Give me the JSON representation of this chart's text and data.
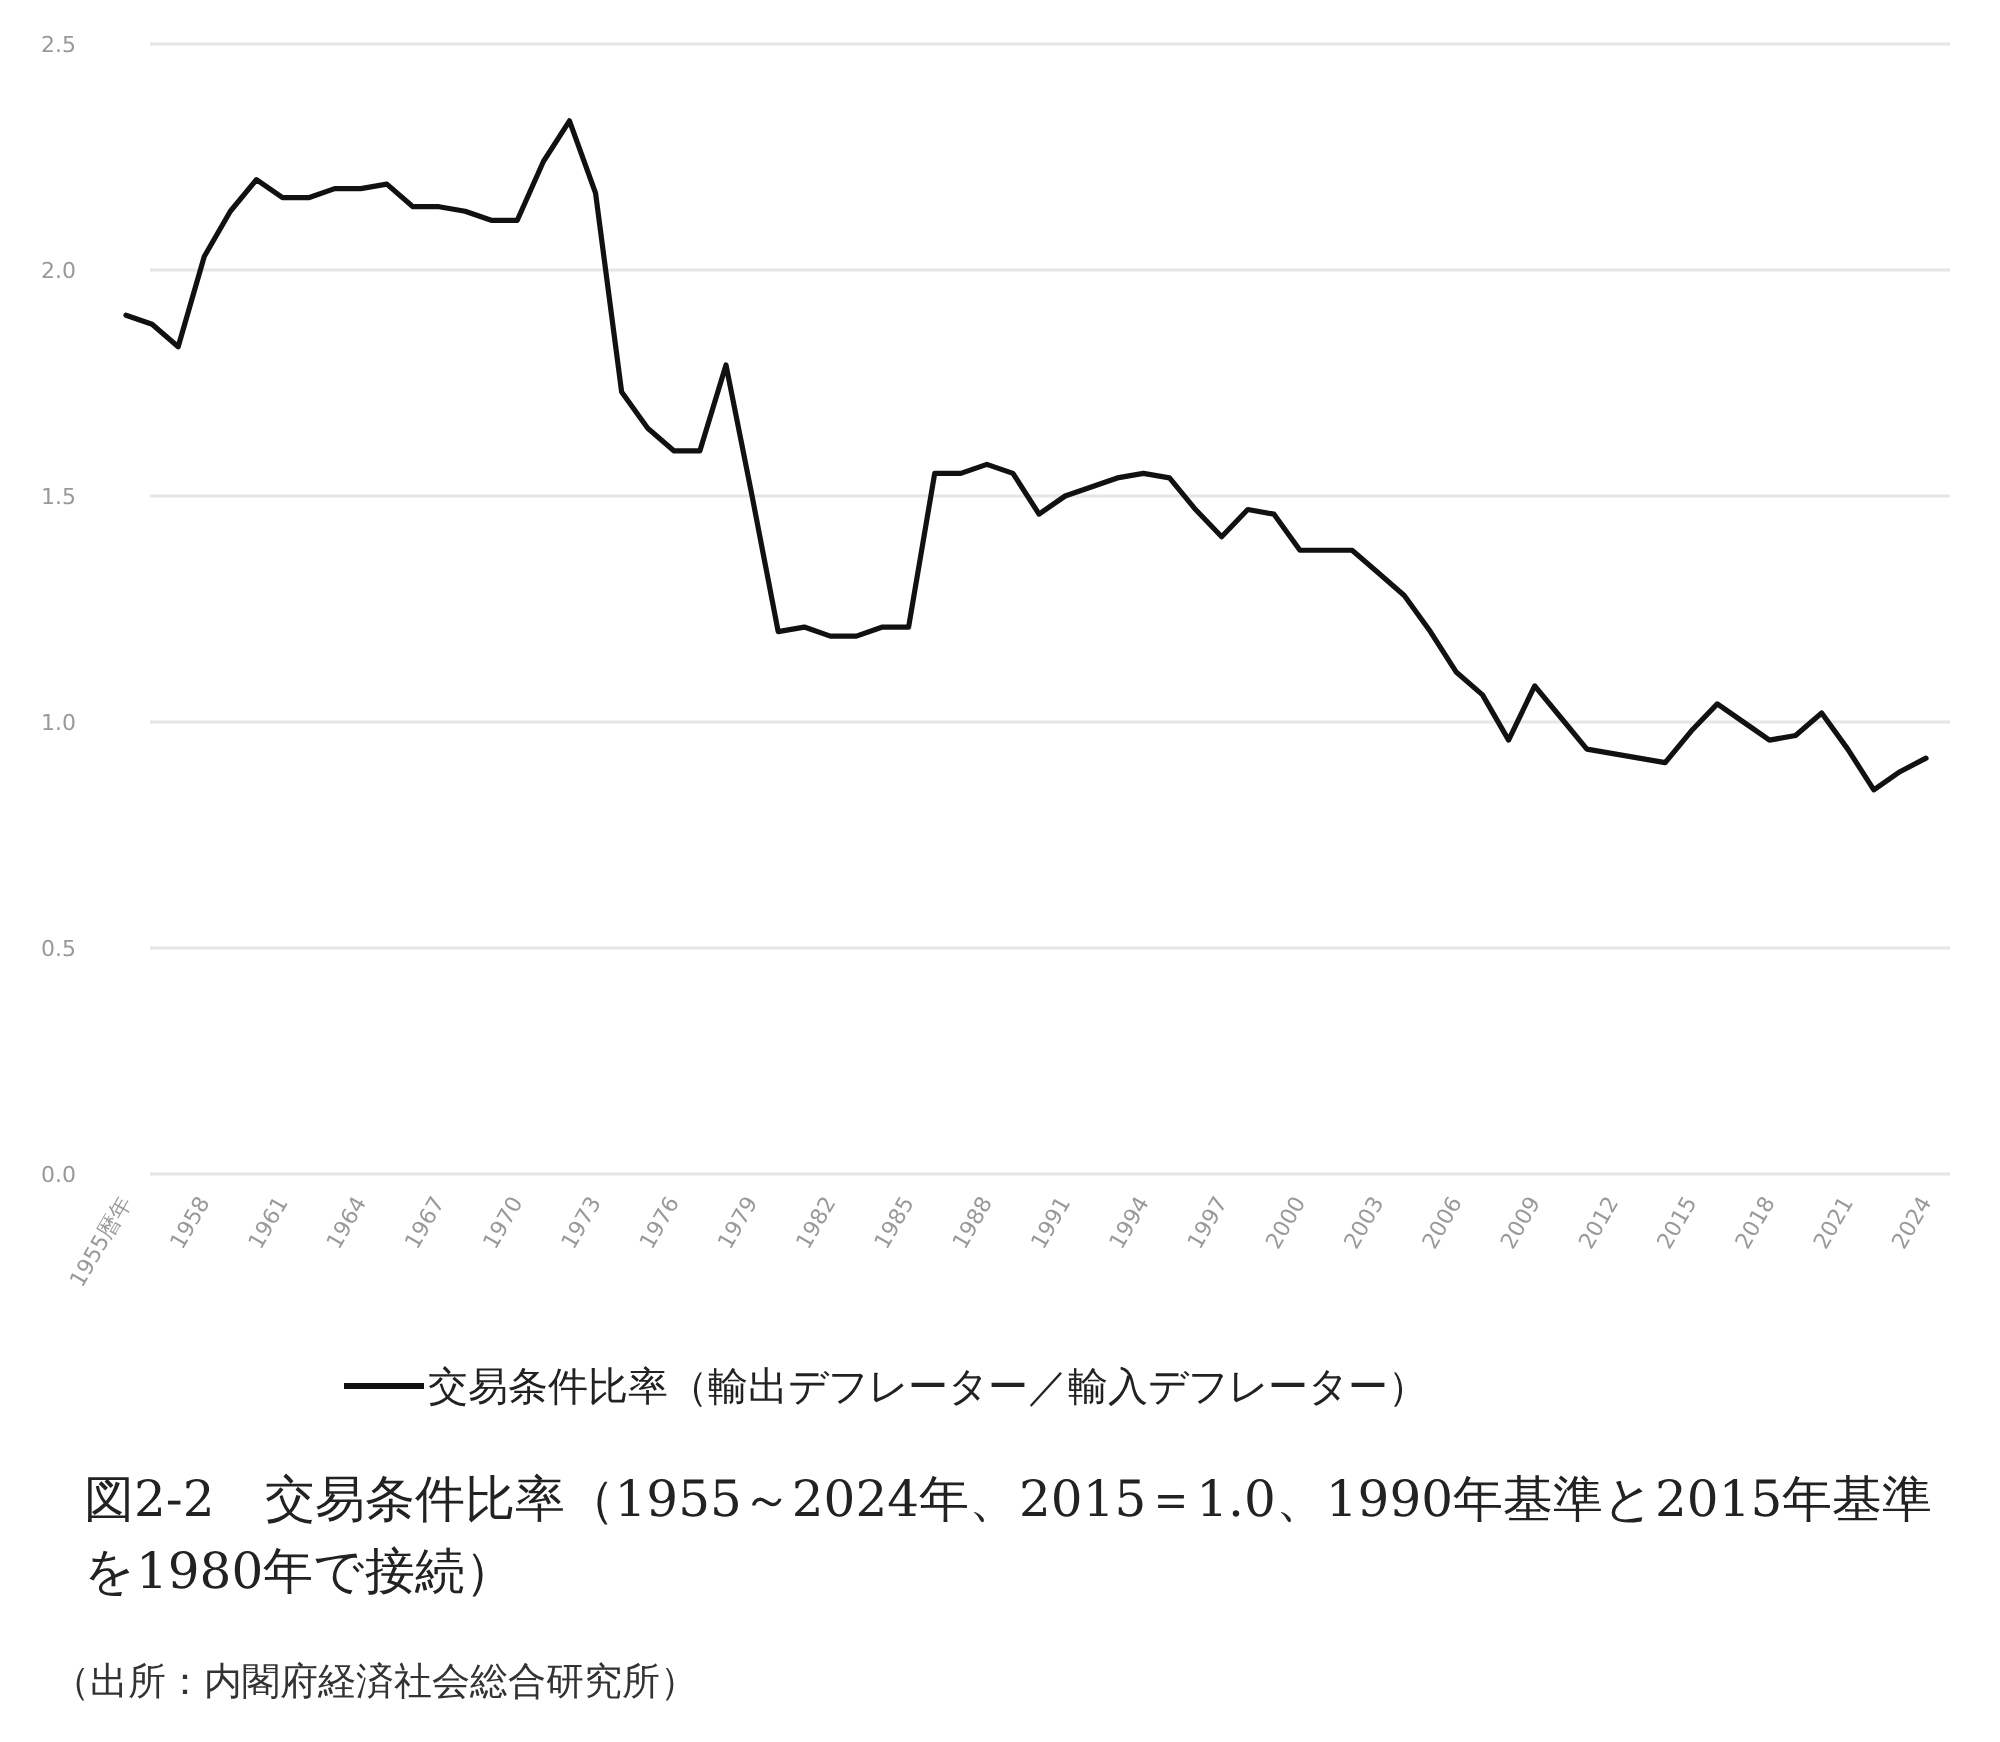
{
  "chart_data": {
    "type": "line",
    "title": "図2-2　交易条件比率（1955～2024年、2015＝1.0、1990年基準と2015年基準を1980年で接続）",
    "annotations": [
      "（出所：内閣府経済社会総合研究所）"
    ],
    "categories": [
      "1955暦年",
      null,
      null,
      "1958",
      null,
      null,
      "1961",
      null,
      null,
      "1964",
      null,
      null,
      "1967",
      null,
      null,
      "1970",
      null,
      null,
      "1973",
      null,
      null,
      "1976",
      null,
      null,
      "1979",
      null,
      null,
      "1982",
      null,
      null,
      "1985",
      null,
      null,
      "1988",
      null,
      null,
      "1991",
      null,
      null,
      "1994",
      null,
      null,
      "1997",
      null,
      null,
      "2000",
      null,
      null,
      "2003",
      null,
      null,
      "2006",
      null,
      null,
      "2009",
      null,
      null,
      "2012",
      null,
      null,
      "2015",
      null,
      null,
      "2018",
      null,
      null,
      "2021",
      null,
      null,
      "2024"
    ],
    "series": [
      {
        "name": "交易条件比率（輸出デフレーター／輸入デフレーター）",
        "color": "#111111",
        "values": [
          1.9,
          1.88,
          1.83,
          2.03,
          2.13,
          2.2,
          2.16,
          2.16,
          2.18,
          2.18,
          2.19,
          2.14,
          2.14,
          2.13,
          2.11,
          2.11,
          2.24,
          2.33,
          2.17,
          1.73,
          1.65,
          1.6,
          1.6,
          1.79,
          1.5,
          1.2,
          1.21,
          1.19,
          1.19,
          1.21,
          1.21,
          1.55,
          1.55,
          1.57,
          1.55,
          1.46,
          1.5,
          1.52,
          1.54,
          1.55,
          1.54,
          1.47,
          1.41,
          1.47,
          1.46,
          1.38,
          1.38,
          1.38,
          1.33,
          1.28,
          1.2,
          1.11,
          1.06,
          0.96,
          1.08,
          1.01,
          0.94,
          0.93,
          0.92,
          0.91,
          0.98,
          1.04,
          1.0,
          0.96,
          0.97,
          1.02,
          0.94,
          0.85,
          0.89,
          0.92
        ]
      }
    ],
    "ylim": [
      0,
      2.5
    ],
    "yticks": [
      {
        "value": 0,
        "label": "0.0"
      },
      {
        "value": 0.5,
        "label": "0.5"
      },
      {
        "value": 1,
        "label": "1.0"
      },
      {
        "value": 1.5,
        "label": "1.5"
      },
      {
        "value": 2,
        "label": "2.0"
      },
      {
        "value": 2.5,
        "label": "2.5"
      }
    ],
    "grid": "y",
    "legend": "bottom"
  }
}
